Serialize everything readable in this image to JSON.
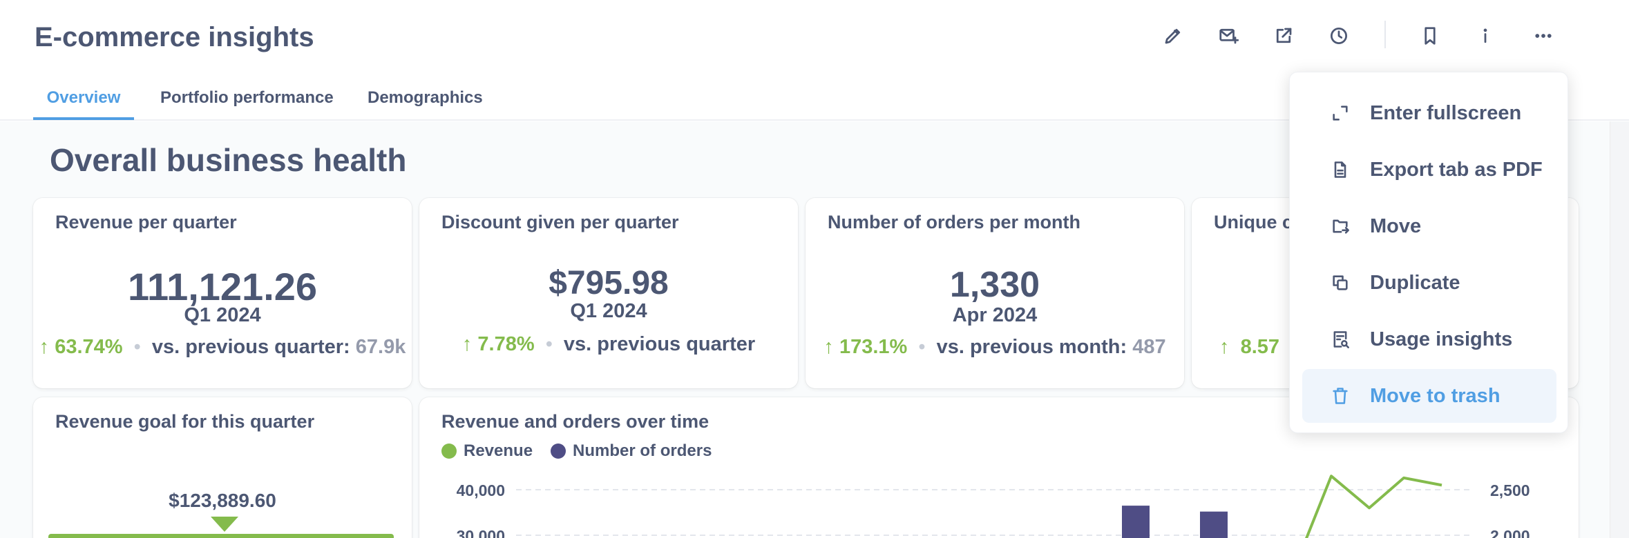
{
  "header": {
    "title": "E-commerce insights",
    "toolbar_icons": [
      "pencil-icon",
      "subscription-icon",
      "share-icon",
      "history-icon",
      "bookmark-icon",
      "info-icon",
      "more-icon"
    ]
  },
  "tabs": [
    {
      "label": "Overview",
      "active": true
    },
    {
      "label": "Portfolio performance",
      "active": false
    },
    {
      "label": "Demographics",
      "active": false
    }
  ],
  "section_title": "Overall business health",
  "kpis": [
    {
      "title": "Revenue per quarter",
      "value": "111,121.26",
      "period": "Q1 2024",
      "change": "63.74%",
      "compare_label": "vs. previous quarter:",
      "previous": "67.9k"
    },
    {
      "title": "Discount given per quarter",
      "value": "$795.98",
      "period": "Q1 2024",
      "change": "7.78%",
      "compare_label": "vs. previous quarter",
      "previous": ""
    },
    {
      "title": "Number of orders per month",
      "value": "1,330",
      "period": "Apr 2024",
      "change": "173.1%",
      "compare_label": "vs. previous month:",
      "previous": "487"
    },
    {
      "title": "Unique c",
      "change": "8.57"
    }
  ],
  "goal_card": {
    "title": "Revenue goal for this quarter",
    "goal_value": "$123,889.60",
    "color": "#84bb4c"
  },
  "chart_card": {
    "title": "Revenue and orders over time"
  },
  "chart_data": {
    "type": "bar",
    "title": "Revenue and orders over time",
    "series": [
      {
        "name": "Revenue",
        "type": "line",
        "color": "#84bb4c",
        "axis": "right",
        "values_visible": [
          1700,
          2650,
          2300,
          2630,
          2550
        ]
      },
      {
        "name": "Number of orders",
        "type": "bar",
        "color": "#4f4d85",
        "axis": "left",
        "values_visible": [
          36500,
          35200
        ]
      }
    ],
    "left_axis_ticks": [
      "40,000",
      "30,000"
    ],
    "right_axis_ticks": [
      "2,500",
      "2,000"
    ],
    "left_axis_values": [
      40000,
      30000
    ],
    "right_axis_values": [
      2500,
      2000
    ],
    "grid": true,
    "legend_position": "top-left"
  },
  "menu": {
    "items": [
      {
        "label": "Enter fullscreen",
        "icon": "expand-icon",
        "hover": false
      },
      {
        "label": "Export tab as PDF",
        "icon": "document-icon",
        "hover": false
      },
      {
        "label": "Move",
        "icon": "move-folder-icon",
        "hover": false
      },
      {
        "label": "Duplicate",
        "icon": "duplicate-icon",
        "hover": false
      },
      {
        "label": "Usage insights",
        "icon": "usage-insights-icon",
        "hover": false
      },
      {
        "label": "Move to trash",
        "icon": "trash-icon",
        "hover": true
      }
    ]
  },
  "colors": {
    "accent": "#509ee3",
    "positive": "#84bb4c",
    "orders_bar": "#4f4d85",
    "text": "#4c5773"
  }
}
